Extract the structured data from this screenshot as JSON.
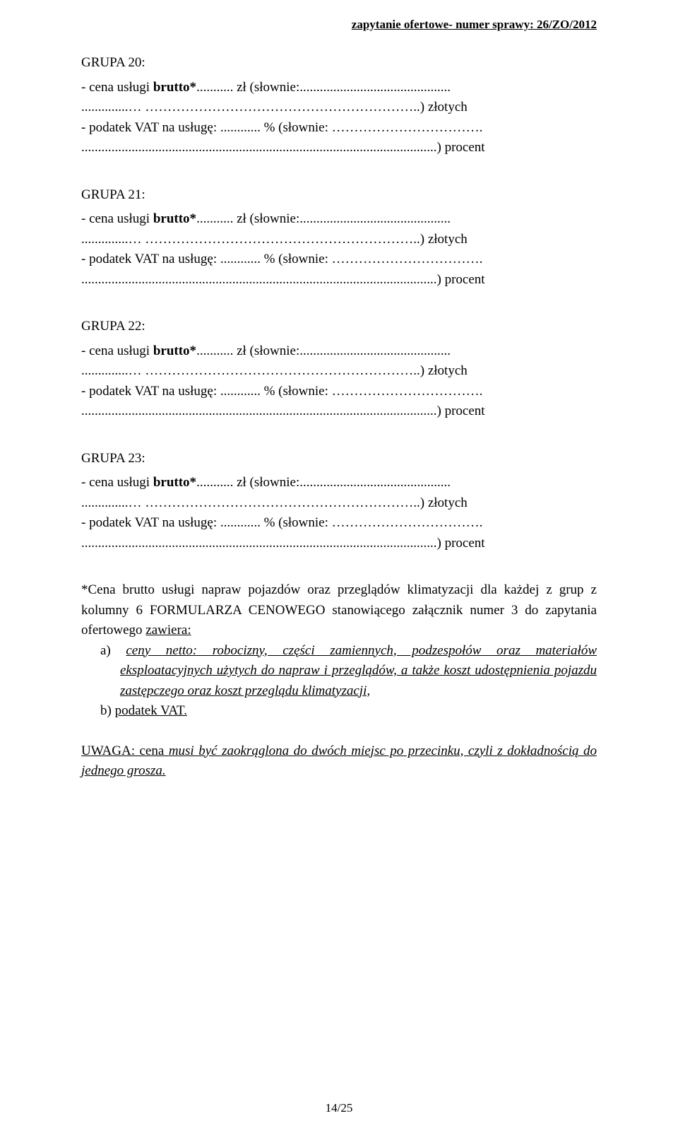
{
  "header": {
    "right_text": "zapytanie ofertowe- numer sprawy: 26/ZO/2012"
  },
  "groups": [
    {
      "title": "GRUPA 20:",
      "line1_prefix": "-  cena  usługi  ",
      "line1_bold": "brutto*",
      "line1_suffix": "...........  zł  (słownie:.............................................",
      "line1b": "..............… ……………………………………………………..) złotych",
      "line2": "-   podatek VAT na usługę: ............ % (słownie: …………………………….",
      "line2b": "..........................................................................................................) procent"
    },
    {
      "title": "GRUPA 21:",
      "line1_prefix": "-  cena  usługi  ",
      "line1_bold": "brutto*",
      "line1_suffix": "...........  zł  (słownie:.............................................",
      "line1b": "..............… ……………………………………………………..) złotych",
      "line2": "-   podatek VAT na usługę: ............ % (słownie: …………………………….",
      "line2b": "..........................................................................................................) procent"
    },
    {
      "title": "GRUPA 22:",
      "line1_prefix": "-  cena  usługi  ",
      "line1_bold": "brutto*",
      "line1_suffix": "...........  zł  (słownie:.............................................",
      "line1b": "..............… ……………………………………………………..) złotych",
      "line2": "-   podatek VAT na usługę: ............ % (słownie: …………………………….",
      "line2b": "..........................................................................................................) procent"
    },
    {
      "title": "GRUPA 23:",
      "line1_prefix": "-  cena  usługi  ",
      "line1_bold": "brutto*",
      "line1_suffix": "...........  zł  (słownie:.............................................",
      "line1b": "..............… ……………………………………………………..) złotych",
      "line2": "-   podatek VAT na usługę: ............ % (słownie: …………………………….",
      "line2b": "..........................................................................................................) procent"
    }
  ],
  "note": {
    "para1": "*Cena brutto usługi napraw pojazdów oraz przeglądów klimatyzacji dla każdej z grup z kolumny 6 FORMULARZA CENOWEGO stanowiącego załącznik numer 3 do zapytania ofertowego ",
    "para1_u": "zawiera:",
    "item_a_prefix": "a)  ",
    "item_a_text": "ceny netto: robocizny, części zamiennych, podzespołów oraz materiałów eksploatacyjnych użytych do napraw i przeglądów, a także koszt udostępnienia pojazdu zastępczego oraz koszt przeglądu klimatyzacji,",
    "item_b_prefix": "b)  ",
    "item_b_text": "podatek VAT."
  },
  "uwaga": {
    "prefix": "UWAGA: cena ",
    "italic": "musi być zaokrąglona do dwóch miejsc po przecinku, czyli z dokładnością do jednego grosza."
  },
  "footer": {
    "page": "14/25"
  }
}
